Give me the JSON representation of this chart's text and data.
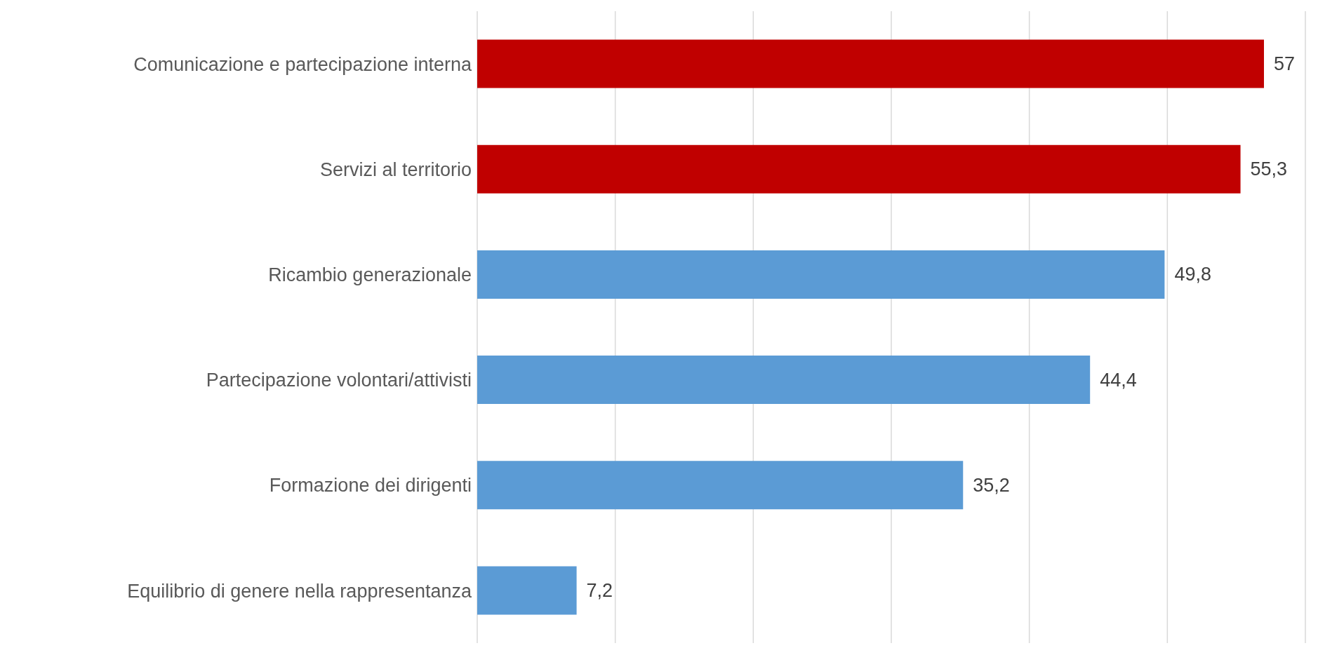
{
  "chart_data": {
    "type": "bar",
    "orientation": "horizontal",
    "categories": [
      "Comunicazione e partecipazione interna",
      "Servizi al territorio",
      "Ricambio generazionale",
      "Partecipazione volontari/attivisti",
      "Formazione dei dirigenti",
      "Equilibrio di genere nella rappresentanza"
    ],
    "values": [
      57,
      55.3,
      49.8,
      44.4,
      35.2,
      7.2
    ],
    "colors": [
      "#c00000",
      "#c00000",
      "#5b9bd5",
      "#5b9bd5",
      "#5b9bd5",
      "#5b9bd5"
    ],
    "value_labels": [
      "57",
      "55,3",
      "49,8",
      "44,4",
      "35,2",
      "7,2"
    ],
    "grid": "x",
    "tick_labels": "y"
  }
}
